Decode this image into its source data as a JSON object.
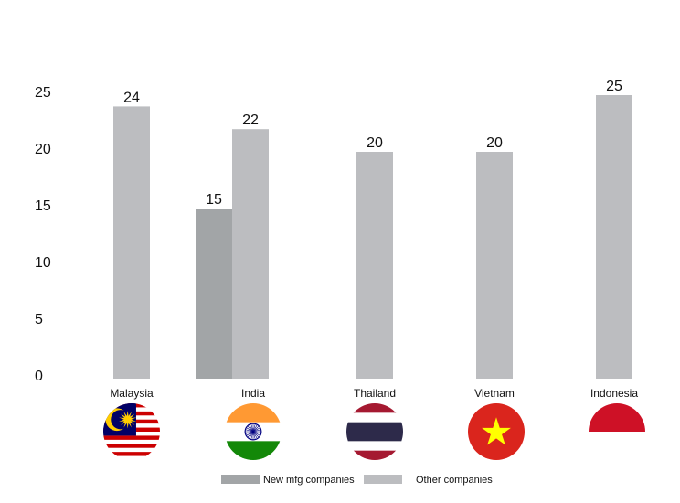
{
  "chart_data": {
    "type": "bar",
    "categories": [
      "Malaysia",
      "India",
      "Thailand",
      "Vietnam",
      "Indonesia"
    ],
    "series": [
      {
        "name": "New mfg companies",
        "values": [
          null,
          15,
          null,
          null,
          null
        ],
        "color": "#a2a5a7"
      },
      {
        "name": "Other companies",
        "values": [
          24,
          22,
          20,
          20,
          25
        ],
        "color": "#bcbdc0"
      }
    ],
    "ylim": [
      0,
      25
    ],
    "yticks": [
      0,
      5,
      10,
      15,
      20,
      25
    ],
    "title": "",
    "xlabel": "",
    "ylabel": "",
    "grid": false,
    "legend_position": "bottom",
    "flags": [
      {
        "country": "Malaysia",
        "icon": "malaysia-flag-icon"
      },
      {
        "country": "India",
        "icon": "india-flag-icon"
      },
      {
        "country": "Thailand",
        "icon": "thailand-flag-icon"
      },
      {
        "country": "Vietnam",
        "icon": "vietnam-flag-icon"
      },
      {
        "country": "Indonesia",
        "icon": "indonesia-flag-icon"
      }
    ],
    "colors": {
      "text": "#111111",
      "malaysia_red": "#cc0001",
      "malaysia_blue": "#010066",
      "malaysia_yellow": "#ffcc00",
      "india_saffron": "#ff9933",
      "india_green": "#138808",
      "india_navy": "#000080",
      "thailand_red": "#a51931",
      "thailand_blue": "#2d2a4a",
      "vietnam_red": "#da251d",
      "vietnam_yellow": "#ffff00",
      "indonesia_red": "#ce1126"
    }
  }
}
